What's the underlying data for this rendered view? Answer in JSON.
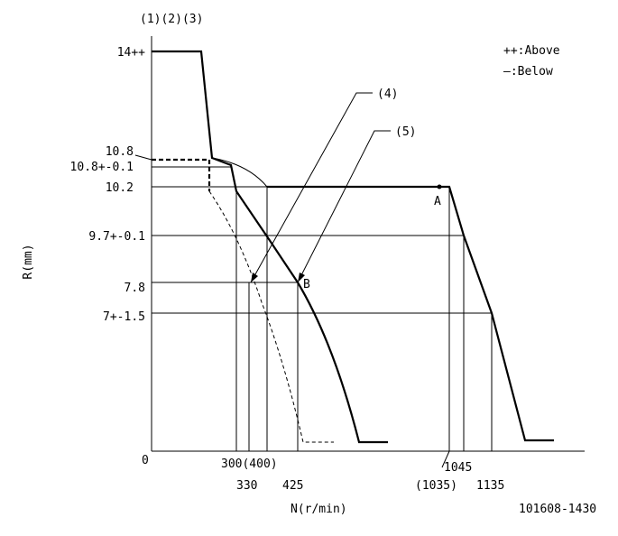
{
  "header": {
    "conditions": "(1)(2)(3)",
    "code": "101608-1430"
  },
  "legend": {
    "above": "++:Above",
    "below": "—:Below"
  },
  "axes": {
    "y_label": "R(mm)",
    "x_label": "N(r/min)",
    "origin": "0"
  },
  "y_labels": [
    "14++",
    "10.8",
    "10.8+-0.1",
    "10.2",
    "9.7+-0.1",
    "7.8",
    "7+-1.5"
  ],
  "x_labels": [
    "300(400)",
    "330",
    "425",
    "1045",
    "(1035)",
    "1135"
  ],
  "points": [
    "A",
    "B"
  ],
  "notes": [
    "(4)",
    "(5)"
  ]
}
